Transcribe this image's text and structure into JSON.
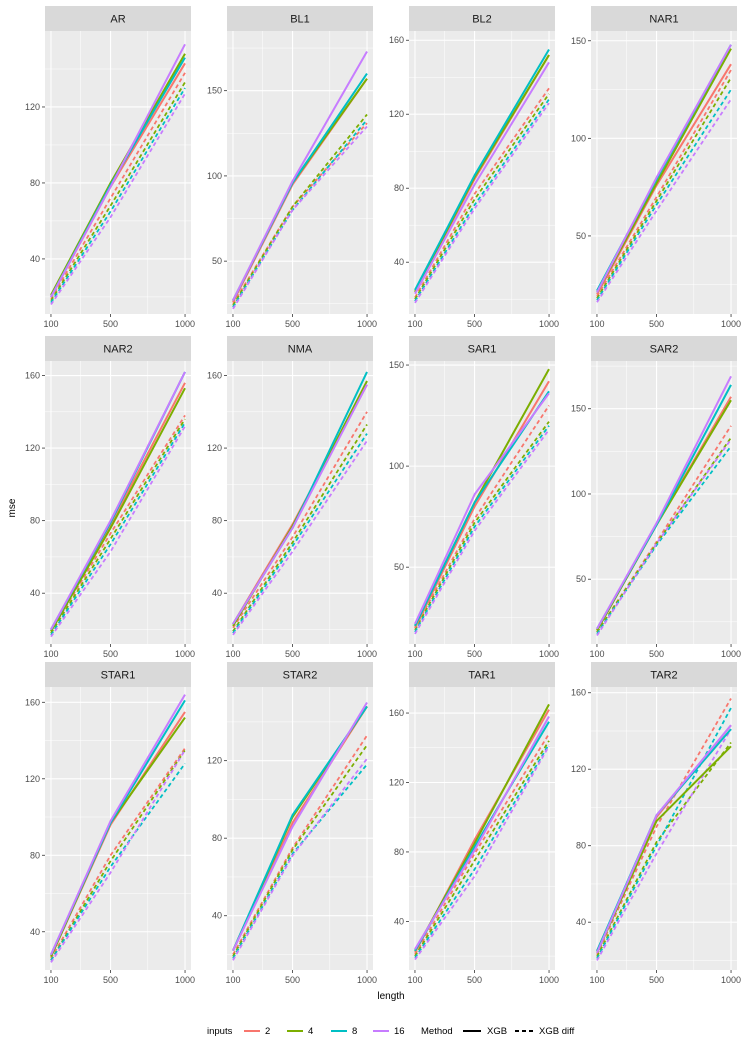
{
  "chart_data": {
    "type": "line",
    "facet_layout": "4 columns x 3 rows",
    "xlabel": "length",
    "ylabel": "mse",
    "x": [
      100,
      500,
      1000
    ],
    "x_ticks": [
      "100",
      "500",
      "1000"
    ],
    "colors": {
      "2": "#F8766D",
      "4": "#7CAE00",
      "8": "#00BFC4",
      "16": "#C77CFF"
    },
    "legend": {
      "position": "bottom",
      "inputs_title": "inputs",
      "inputs": [
        "2",
        "4",
        "8",
        "16"
      ],
      "method_title": "Method",
      "methods": [
        "XGB",
        "XGB diff"
      ]
    },
    "panels": [
      {
        "title": "AR",
        "ylim": [
          11,
          160
        ],
        "yticks": [
          40,
          80,
          120
        ],
        "series": {
          "XGB": {
            "2": [
              20,
              78,
              143
            ],
            "4": [
              21,
              80,
              148
            ],
            "8": [
              20,
              79,
              146
            ],
            "16": [
              20,
              78,
              153
            ]
          },
          "XGB diff": {
            "2": [
              19,
              72,
              138
            ],
            "4": [
              18,
              68,
              133
            ],
            "8": [
              17,
              65,
              130
            ],
            "16": [
              16,
              62,
              127
            ]
          }
        }
      },
      {
        "title": "BL1",
        "ylim": [
          19,
          185
        ],
        "yticks": [
          50,
          100,
          150
        ],
        "series": {
          "XGB": {
            "2": [
              26,
              95,
              157
            ],
            "4": [
              27,
              96,
              157
            ],
            "8": [
              27,
              96,
              160
            ],
            "16": [
              27,
              97,
              173
            ]
          },
          "XGB diff": {
            "2": [
              25,
              82,
              131
            ],
            "4": [
              24,
              82,
              136
            ],
            "8": [
              23,
              80,
              133
            ],
            "16": [
              22,
              80,
              129
            ]
          }
        }
      },
      {
        "title": "BL2",
        "ylim": [
          12,
          165
        ],
        "yticks": [
          40,
          80,
          120,
          160
        ],
        "series": {
          "XGB": {
            "2": [
              24,
              85,
              152
            ],
            "4": [
              24,
              86,
              152
            ],
            "8": [
              25,
              87,
              155
            ],
            "16": [
              23,
              82,
              148
            ]
          },
          "XGB diff": {
            "2": [
              21,
              77,
              134
            ],
            "4": [
              20,
              74,
              131
            ],
            "8": [
              19,
              71,
              128
            ],
            "16": [
              18,
              69,
              126
            ]
          }
        }
      },
      {
        "title": "NAR1",
        "ylim": [
          10,
          155
        ],
        "yticks": [
          50,
          100,
          150
        ],
        "series": {
          "XGB": {
            "2": [
              20,
              76,
              138
            ],
            "4": [
              21,
              77,
              146
            ],
            "8": [
              22,
              79,
              148
            ],
            "16": [
              21,
              80,
              148
            ]
          },
          "XGB diff": {
            "2": [
              19,
              70,
              135
            ],
            "4": [
              18,
              68,
              131
            ],
            "8": [
              17,
              66,
              125
            ],
            "16": [
              16,
              63,
              120
            ]
          }
        }
      },
      {
        "title": "NAR2",
        "ylim": [
          12,
          168
        ],
        "yticks": [
          40,
          80,
          120,
          160
        ],
        "series": {
          "XGB": {
            "2": [
              20,
              78,
              156
            ],
            "4": [
              19,
              76,
              153
            ],
            "8": [
              20,
              79,
              162
            ],
            "16": [
              20,
              80,
              162
            ]
          },
          "XGB diff": {
            "2": [
              19,
              73,
              138
            ],
            "4": [
              18,
              70,
              136
            ],
            "8": [
              17,
              67,
              134
            ],
            "16": [
              16,
              63,
              132
            ]
          }
        }
      },
      {
        "title": "NMA",
        "ylim": [
          12,
          168
        ],
        "yticks": [
          40,
          80,
          120,
          160
        ],
        "series": {
          "XGB": {
            "2": [
              23,
              78,
              155
            ],
            "4": [
              22,
              77,
              157
            ],
            "8": [
              23,
              76,
              162
            ],
            "16": [
              23,
              76,
              155
            ]
          },
          "XGB diff": {
            "2": [
              21,
              71,
              140
            ],
            "4": [
              19,
              68,
              133
            ],
            "8": [
              18,
              66,
              128
            ],
            "16": [
              17,
              63,
              124
            ]
          }
        }
      },
      {
        "title": "SAR1",
        "ylim": [
          12,
          152
        ],
        "yticks": [
          50,
          100,
          150
        ],
        "series": {
          "XGB": {
            "2": [
              20,
              80,
              142
            ],
            "4": [
              21,
              82,
              148
            ],
            "8": [
              21,
              82,
              137
            ],
            "16": [
              22,
              86,
              136
            ]
          },
          "XGB diff": {
            "2": [
              20,
              74,
              130
            ],
            "4": [
              19,
              72,
              122
            ],
            "8": [
              18,
              70,
              120
            ],
            "16": [
              17,
              68,
              118
            ]
          }
        }
      },
      {
        "title": "SAR2",
        "ylim": [
          12,
          178
        ],
        "yticks": [
          50,
          100,
          150
        ],
        "series": {
          "XGB": {
            "2": [
              20,
              82,
              157
            ],
            "4": [
              20,
              82,
              155
            ],
            "8": [
              21,
              82,
              164
            ],
            "16": [
              21,
              83,
              169
            ]
          },
          "XGB diff": {
            "2": [
              19,
              72,
              140
            ],
            "4": [
              19,
              71,
              133
            ],
            "8": [
              18,
              70,
              128
            ],
            "16": [
              17,
              71,
              132
            ]
          }
        }
      },
      {
        "title": "STAR1",
        "ylim": [
          20,
          168
        ],
        "yticks": [
          40,
          80,
          120,
          160
        ],
        "series": {
          "XGB": {
            "2": [
              27,
              96,
              155
            ],
            "4": [
              27,
              97,
              152
            ],
            "8": [
              28,
              97,
              161
            ],
            "16": [
              28,
              98,
              164
            ]
          },
          "XGB diff": {
            "2": [
              26,
              80,
              136
            ],
            "4": [
              25,
              77,
              135
            ],
            "8": [
              25,
              74,
              128
            ],
            "16": [
              24,
              71,
              135
            ]
          }
        }
      },
      {
        "title": "STAR2",
        "ylim": [
          12,
          158
        ],
        "yticks": [
          40,
          80,
          120
        ],
        "series": {
          "XGB": {
            "2": [
              22,
              88,
              148
            ],
            "4": [
              22,
              91,
              148
            ],
            "8": [
              22,
              92,
              148
            ],
            "16": [
              22,
              86,
              150
            ]
          },
          "XGB diff": {
            "2": [
              20,
              75,
              133
            ],
            "4": [
              19,
              74,
              128
            ],
            "8": [
              18,
              72,
              118
            ],
            "16": [
              17,
              71,
              121
            ]
          }
        }
      },
      {
        "title": "TAR1",
        "ylim": [
          12,
          175
        ],
        "yticks": [
          40,
          80,
          120,
          160
        ],
        "series": {
          "XGB": {
            "2": [
              22,
              87,
              162
            ],
            "4": [
              23,
              85,
              165
            ],
            "8": [
              23,
              83,
              155
            ],
            "16": [
              24,
              81,
              158
            ]
          },
          "XGB diff": {
            "2": [
              21,
              79,
              148
            ],
            "4": [
              20,
              75,
              144
            ],
            "8": [
              19,
              70,
              142
            ],
            "16": [
              18,
              66,
              141
            ]
          }
        }
      },
      {
        "title": "TAR2",
        "ylim": [
          15,
          163
        ],
        "yticks": [
          40,
          80,
          120,
          160
        ],
        "series": {
          "XGB": {
            "2": [
              25,
              95,
              143
            ],
            "4": [
              24,
              93,
              132
            ],
            "8": [
              25,
              96,
              141
            ],
            "16": [
              24,
              96,
              143
            ]
          },
          "XGB diff": {
            "2": [
              23,
              90,
              157
            ],
            "4": [
              22,
              82,
              134
            ],
            "8": [
              21,
              80,
              152
            ],
            "16": [
              20,
              76,
              141
            ]
          }
        }
      }
    ]
  }
}
